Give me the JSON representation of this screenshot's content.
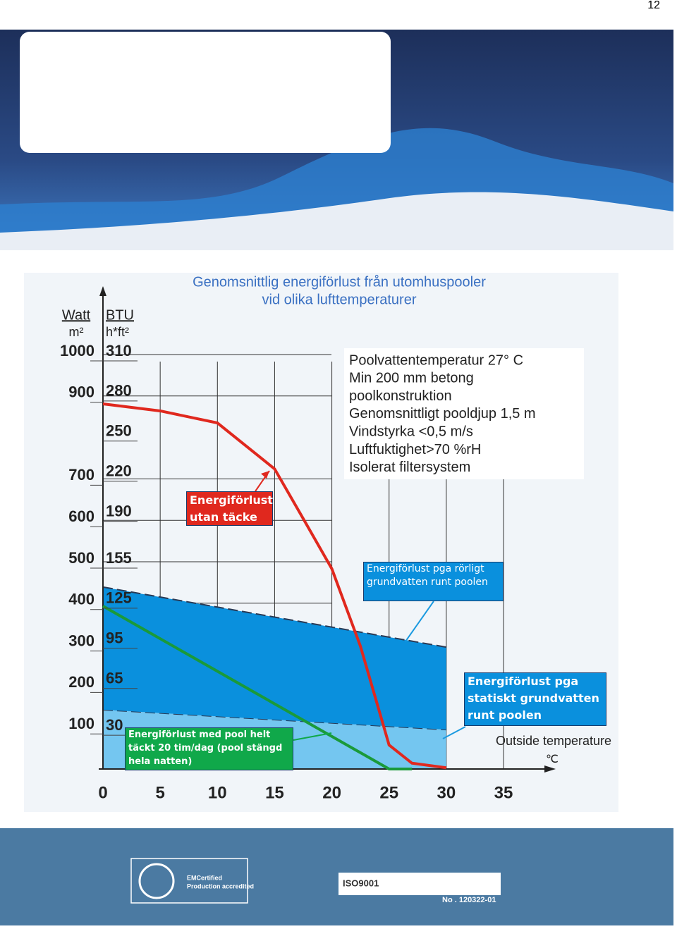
{
  "page_number": "12",
  "chart_data": {
    "type": "line",
    "title": [
      "Genomsnittlig energiförlust från utomhuspooler",
      "vid olika lufttemperaturer"
    ],
    "ylabel": "Watt",
    "ylabel_unit": "m²",
    "y2label": "BTU",
    "y2label_unit": "h*ft²",
    "xlabel": "Outside temperature",
    "xlabel_unit": "℃",
    "xlim": [
      0,
      35
    ],
    "xticks": [
      0,
      5,
      10,
      15,
      20,
      25,
      30,
      35
    ],
    "ylim": [
      0,
      1000
    ],
    "yticks": [
      100,
      200,
      300,
      400,
      500,
      600,
      700,
      900,
      1000
    ],
    "y2lim": [
      0,
      310
    ],
    "y2ticks": [
      30,
      65,
      95,
      125,
      155,
      190,
      220,
      250,
      280,
      310
    ],
    "grid": true,
    "notes": [
      "Poolvattentemperatur 27° C",
      "Min 200 mm betong",
      "poolkonstruktion",
      "Genomsnittligt pooldjup 1,5 m",
      "Vindstyrka <0,5 m/s",
      "Luftfuktighet>70 %rH",
      "Isolerat filtersystem"
    ],
    "series": [
      {
        "name": "Energiförlust pga statiskt grundvatten runt poolen",
        "type": "area",
        "color": "#74c6f0",
        "x": [
          0,
          30
        ],
        "values": [
          143,
          95
        ]
      },
      {
        "name": "Energiförlust pga rörligt grundvatten runt poolen",
        "type": "area",
        "stacked": true,
        "color": "#0a90dd",
        "x": [
          0,
          30
        ],
        "values": [
          296,
          199
        ]
      },
      {
        "name": "Energiförlust utan täcke",
        "type": "line",
        "color": "#e0281e",
        "x": [
          0,
          5,
          10,
          15,
          17.5,
          20,
          22.5,
          25,
          27,
          30
        ],
        "values": [
          881,
          864,
          835,
          724,
          604,
          483,
          296,
          58,
          14,
          3
        ]
      },
      {
        "name": "Energiförlust med pool helt täckt 20 tim/dag (pool stängd hela natten)",
        "type": "line",
        "color": "#1a9a3a",
        "x": [
          0,
          25,
          27
        ],
        "values": [
          393,
          0,
          0
        ]
      }
    ]
  },
  "footer": {
    "badges": [
      "EMCertified",
      "Production accredited",
      "ISO9001",
      "No . 120322-01"
    ]
  }
}
